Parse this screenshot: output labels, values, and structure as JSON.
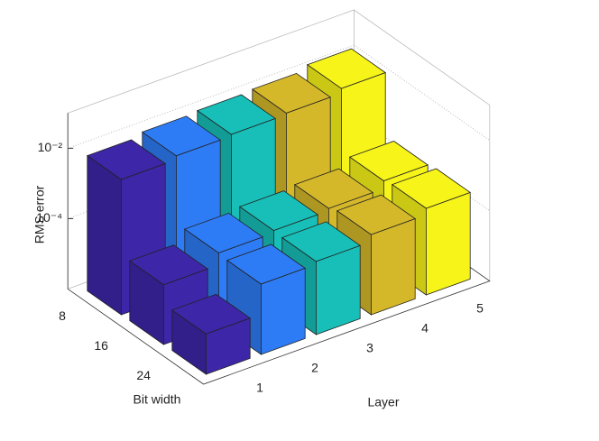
{
  "chart_data": {
    "type": "bar3",
    "x_categories": [
      "1",
      "2",
      "3",
      "4",
      "5"
    ],
    "y_categories": [
      "8",
      "16",
      "24"
    ],
    "values": [
      [
        0.007,
        0.009,
        0.01,
        0.011,
        0.015
      ],
      [
        5e-05,
        0.00011,
        0.00013,
        0.00015,
        0.00025
      ],
      [
        1.4e-05,
        0.0001,
        0.00012,
        0.00019,
        0.00029
      ]
    ],
    "colors": [
      "#3e26a8",
      "#2e7cf5",
      "#18bfb8",
      "#d5b82a",
      "#f7f41a"
    ],
    "xlabel": "Layer",
    "ylabel": "Bit width",
    "zlabel": "RMS error",
    "zscale": "log",
    "zlim": [
      1e-06,
      0.1
    ],
    "zticks": [
      {
        "value": 0.0001,
        "label": "10⁻⁴"
      },
      {
        "value": 0.01,
        "label": "10⁻²"
      }
    ],
    "grid": true
  }
}
